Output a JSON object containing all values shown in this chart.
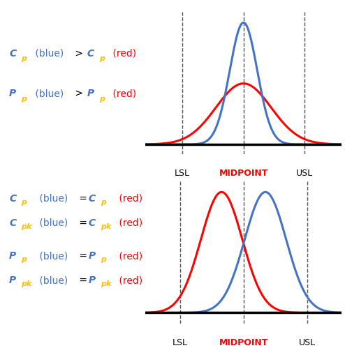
{
  "background_color": "#ffffff",
  "blue_color": "#4472C4",
  "red_color": "#FF0000",
  "dashed_color": "#555555",
  "axis_color": "#000000",
  "label_color": "#000000",
  "midpoint_color": "#FF0000",
  "var_color": "#4472C4",
  "sub_color": "#FFC000",
  "op_color": "#000000",
  "top_plot": {
    "blue_mean": 0.0,
    "blue_std": 0.45,
    "red_mean": 0.0,
    "red_std": 0.9,
    "lsl": -2.0,
    "usl": 2.0,
    "midpoint": 0.0,
    "xlim_left": -3.2,
    "xlim_right": 3.2
  },
  "bottom_plot": {
    "blue_mean": 1.2,
    "blue_std": 0.9,
    "red_mean": -0.7,
    "red_std": 0.9,
    "lsl": -2.5,
    "usl": 3.0,
    "midpoint": 0.25,
    "xlim_left": -4.0,
    "xlim_right": 4.5
  },
  "xlabel_lsl": "LSL",
  "xlabel_midpoint": "MIDPOINT",
  "xlabel_usl": "USL",
  "label_fontsize": 9,
  "annot_fontsize": 10,
  "annot_sub_fontsize": 8
}
